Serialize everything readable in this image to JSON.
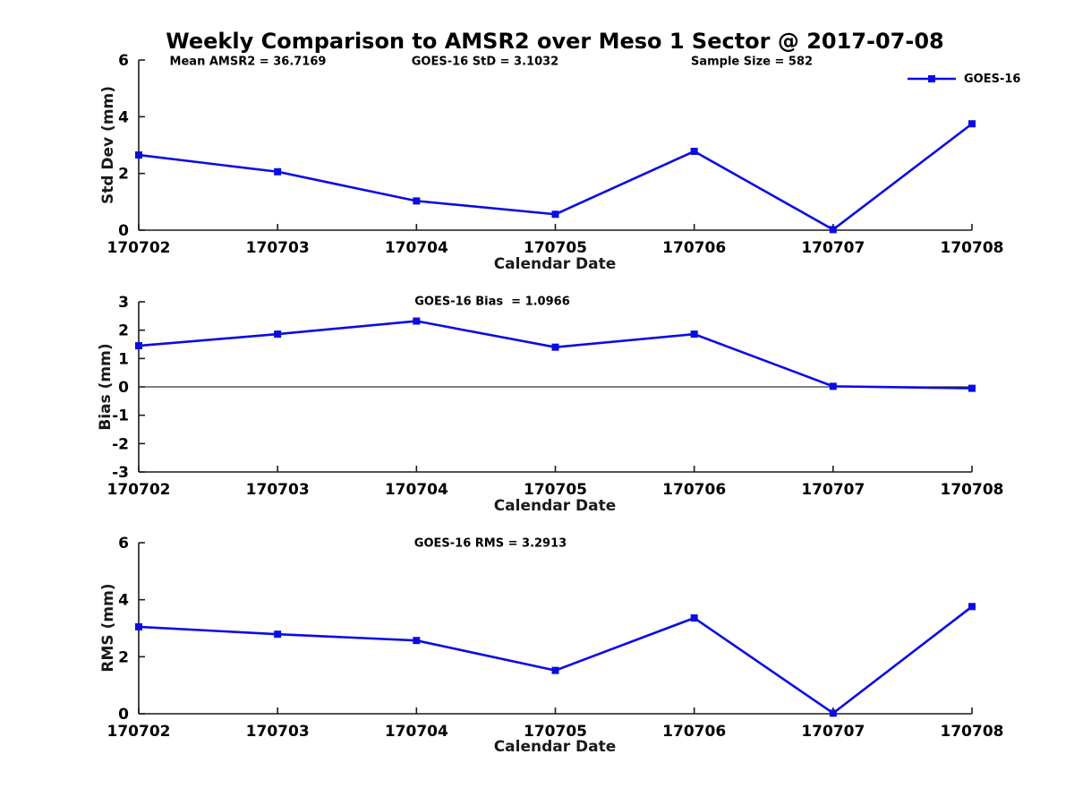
{
  "title": "Weekly Comparison to AMSR2 over Meso 1 Sector @ 2017-07-08",
  "legend": {
    "label": "GOES-16",
    "marker": "square-marker-icon",
    "position": "top-right"
  },
  "colors": {
    "line": "#0b0be4",
    "marker": "#0b0be4",
    "axis": "#1a1a1a",
    "text": "#000000",
    "zero_line": "#333333",
    "background": "#ffffff"
  },
  "chart_data": [
    {
      "type": "line",
      "ylabel": "Std Dev (mm)",
      "xlabel": "Calendar Date",
      "categories": [
        "170702",
        "170703",
        "170704",
        "170705",
        "170706",
        "170707",
        "170708"
      ],
      "series": [
        {
          "name": "GOES-16",
          "values": [
            2.65,
            2.06,
            1.03,
            0.56,
            2.78,
            0.02,
            3.75
          ]
        }
      ],
      "ylim": [
        0,
        6
      ],
      "yticks": [
        0,
        2,
        4,
        6
      ],
      "grid": false,
      "legend_position": "top-right",
      "annotations": [
        {
          "text": "Mean AMSR2 = 36.7169"
        },
        {
          "text": "GOES-16 StD = 3.1032"
        },
        {
          "text": "Sample Size = 582"
        }
      ]
    },
    {
      "type": "line",
      "ylabel": "Bias (mm)",
      "xlabel": "Calendar Date",
      "categories": [
        "170702",
        "170703",
        "170704",
        "170705",
        "170706",
        "170707",
        "170708"
      ],
      "series": [
        {
          "name": "GOES-16",
          "values": [
            1.45,
            1.86,
            2.32,
            1.4,
            1.86,
            0.02,
            -0.05
          ]
        }
      ],
      "ylim": [
        -3,
        3
      ],
      "yticks": [
        -3,
        -2,
        -1,
        0,
        1,
        2,
        3
      ],
      "zero_line": true,
      "grid": false,
      "annotations": [
        {
          "text": "GOES-16 Bias  = 1.0966"
        }
      ]
    },
    {
      "type": "line",
      "ylabel": "RMS (mm)",
      "xlabel": "Calendar Date",
      "categories": [
        "170702",
        "170703",
        "170704",
        "170705",
        "170706",
        "170707",
        "170708"
      ],
      "series": [
        {
          "name": "GOES-16",
          "values": [
            3.05,
            2.79,
            2.57,
            1.52,
            3.36,
            0.02,
            3.76
          ]
        }
      ],
      "ylim": [
        0,
        6
      ],
      "yticks": [
        0,
        2,
        4,
        6
      ],
      "grid": false,
      "annotations": [
        {
          "text": "GOES-16 RMS = 3.2913"
        }
      ]
    }
  ]
}
